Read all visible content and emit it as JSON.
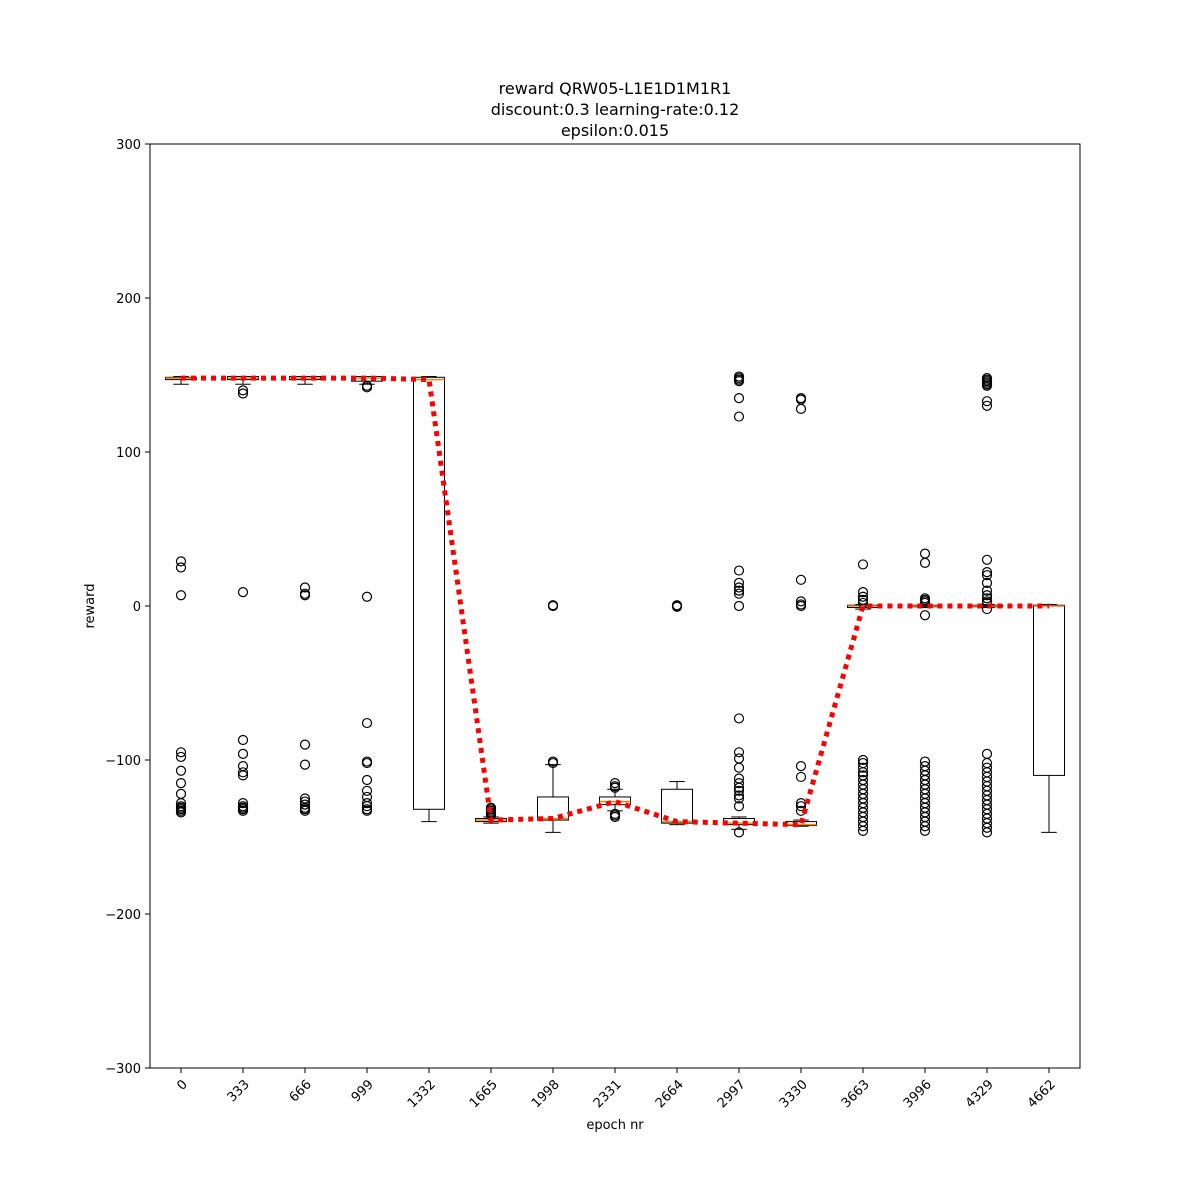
{
  "chart_data": {
    "type": "box",
    "title_lines": [
      "reward QRW05-L1E1D1M1R1",
      "discount:0.3 learning-rate:0.12",
      "epsilon:0.015"
    ],
    "xlabel": "epoch nr",
    "ylabel": "reward",
    "ylim": [
      -300,
      300
    ],
    "yticks": [
      -300,
      -200,
      -100,
      0,
      100,
      200,
      300
    ],
    "ytick_labels": [
      "−300",
      "−200",
      "−100",
      "0",
      "100",
      "200",
      "300"
    ],
    "categories": [
      "0",
      "333",
      "666",
      "999",
      "1332",
      "1665",
      "1998",
      "2331",
      "2664",
      "2997",
      "3330",
      "3663",
      "3996",
      "4329",
      "4662"
    ],
    "boxes": [
      {
        "q1": 147,
        "median": 148,
        "q3": 148.5,
        "whislo": 144,
        "whishi": 149,
        "fliers": [
          29,
          25,
          7,
          -95,
          -98,
          -107,
          -115,
          -122,
          -128,
          -130,
          -131,
          -132,
          -133,
          -134
        ]
      },
      {
        "q1": 147,
        "median": 148,
        "q3": 149,
        "whislo": 144,
        "whishi": 149,
        "fliers": [
          140,
          138,
          9,
          -87,
          -96,
          -104,
          -108,
          -110,
          -128,
          -130,
          -131,
          -132,
          -133
        ]
      },
      {
        "q1": 147,
        "median": 148,
        "q3": 149,
        "whislo": 144,
        "whishi": 149,
        "fliers": [
          12,
          8,
          7,
          -90,
          -103,
          -125,
          -127,
          -129,
          -131,
          -132,
          -133
        ]
      },
      {
        "q1": 146,
        "median": 148,
        "q3": 149,
        "whislo": 144,
        "whishi": 149,
        "fliers": [
          143,
          142,
          6,
          -76,
          -101,
          -102,
          -113,
          -120,
          -124,
          -128,
          -130,
          -132,
          -133
        ]
      },
      {
        "q1": -132,
        "median": 147,
        "q3": 148.5,
        "whislo": -140,
        "whishi": 149,
        "fliers": []
      },
      {
        "q1": -140,
        "median": -139,
        "q3": -138,
        "whislo": -141,
        "whishi": -137,
        "fliers": [
          -131,
          -132,
          -133,
          -134,
          -135,
          -136
        ]
      },
      {
        "q1": -139,
        "median": -138,
        "q3": -124,
        "whislo": -147,
        "whishi": -103,
        "fliers": [
          0,
          0.5,
          -101,
          -102
        ]
      },
      {
        "q1": -129,
        "median": -127,
        "q3": -124,
        "whislo": -133,
        "whishi": -119,
        "fliers": [
          -115,
          -117,
          -118,
          -135,
          -136,
          -137
        ]
      },
      {
        "q1": -141,
        "median": -140,
        "q3": -119,
        "whislo": -142,
        "whishi": -114,
        "fliers": [
          0,
          0.5,
          -0.5
        ]
      },
      {
        "q1": -142,
        "median": -141,
        "q3": -138,
        "whislo": -145,
        "whishi": -137,
        "fliers": [
          149,
          148,
          147,
          146,
          135,
          123,
          23,
          15,
          12,
          10,
          8,
          0,
          -73,
          -95,
          -99,
          -105,
          -112,
          -115,
          -118,
          -120,
          -123,
          -125,
          -130,
          -147
        ]
      },
      {
        "q1": -142.5,
        "median": -142,
        "q3": -140,
        "whislo": -143,
        "whishi": -139,
        "fliers": [
          135,
          134,
          128,
          17,
          3,
          1,
          0,
          -104,
          -111,
          -128,
          -130,
          -133
        ]
      },
      {
        "q1": -1,
        "median": 0,
        "q3": 0.5,
        "whislo": -2,
        "whishi": 1,
        "fliers": [
          27,
          9,
          6,
          4,
          2,
          -100,
          -102,
          -105,
          -108,
          -110,
          -113,
          -116,
          -119,
          -122,
          -125,
          -128,
          -131,
          -134,
          -137,
          -140,
          -143,
          -146
        ]
      },
      {
        "q1": -0.5,
        "median": 0,
        "q3": 0.5,
        "whislo": -1,
        "whishi": 1,
        "fliers": [
          34,
          28,
          5,
          4,
          3,
          2,
          -6,
          -101,
          -104,
          -107,
          -110,
          -113,
          -116,
          -119,
          -122,
          -125,
          -128,
          -131,
          -134,
          -137,
          -140,
          -143,
          -146
        ]
      },
      {
        "q1": -0.5,
        "median": 0,
        "q3": 0.5,
        "whislo": -1,
        "whishi": 1,
        "fliers": [
          148,
          147,
          146,
          145,
          144,
          143,
          133,
          130,
          30,
          22,
          20,
          15,
          10,
          7,
          5,
          3,
          2,
          -2,
          -96,
          -102,
          -105,
          -108,
          -111,
          -114,
          -117,
          -120,
          -123,
          -126,
          -129,
          -132,
          -135,
          -138,
          -141,
          -144,
          -147
        ]
      },
      {
        "q1": -110,
        "median": 0,
        "q3": 0.5,
        "whislo": -147,
        "whishi": 1,
        "fliers": []
      }
    ],
    "mean_line": {
      "values": [
        148,
        148,
        148,
        148,
        147,
        -139,
        -138,
        -127,
        -140,
        -141,
        -142,
        0,
        0,
        0,
        0
      ],
      "color": "#ff0000",
      "style": "dotted"
    },
    "colors": {
      "box": "#000000",
      "median": "#ff7f0e",
      "mean_line": "#ff0000"
    }
  }
}
